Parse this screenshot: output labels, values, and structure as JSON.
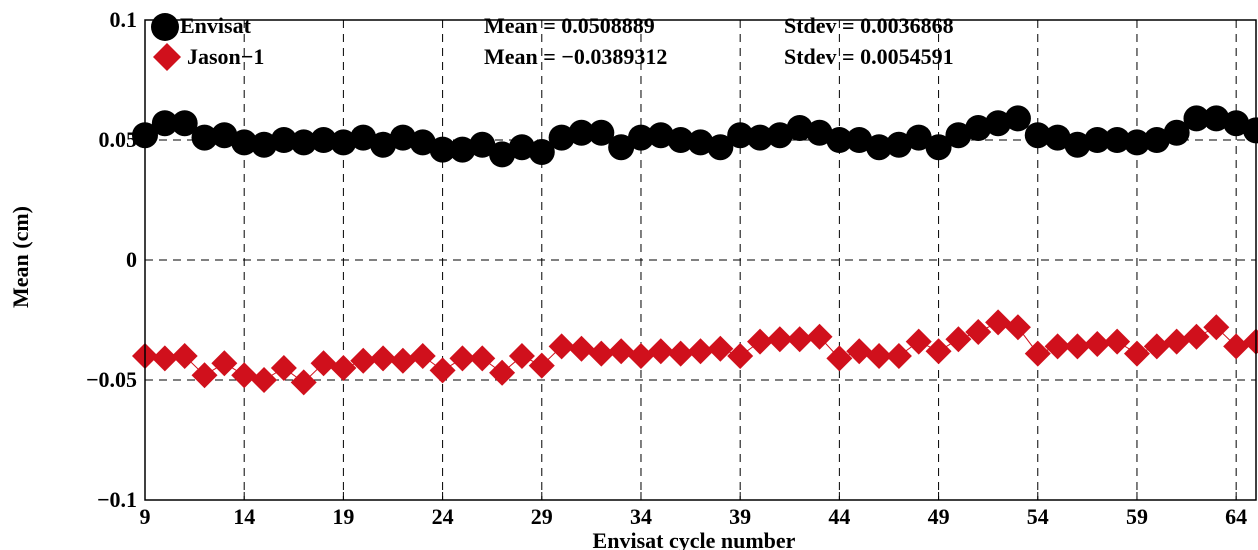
{
  "chart_data": {
    "type": "line",
    "title": "",
    "xlabel": "Envisat cycle number",
    "ylabel": "Mean (cm)",
    "xlim": [
      9,
      65
    ],
    "ylim": [
      -0.1,
      0.1
    ],
    "x_ticks": [
      9,
      14,
      19,
      24,
      29,
      34,
      39,
      44,
      49,
      54,
      59,
      64
    ],
    "y_ticks": [
      {
        "value": -0.1,
        "label": "−0.1"
      },
      {
        "value": -0.05,
        "label": "−0.05"
      },
      {
        "value": 0,
        "label": "0"
      },
      {
        "value": 0.05,
        "label": "0.05"
      },
      {
        "value": 0.1,
        "label": "0.1"
      }
    ],
    "grid": true,
    "legend_position": "top-left",
    "x": [
      9,
      10,
      11,
      12,
      13,
      14,
      15,
      16,
      17,
      18,
      19,
      20,
      21,
      22,
      23,
      24,
      25,
      26,
      27,
      28,
      29,
      30,
      31,
      32,
      33,
      34,
      35,
      36,
      37,
      38,
      39,
      40,
      41,
      42,
      43,
      44,
      45,
      46,
      47,
      48,
      49,
      50,
      51,
      52,
      53,
      54,
      55,
      56,
      57,
      58,
      59,
      60,
      61,
      62,
      63,
      64,
      65
    ],
    "series": [
      {
        "name": "Envisat",
        "color": "#000000",
        "marker": "circle",
        "mean_label": "Mean = 0.0508889",
        "stdev_label": "Stdev = 0.0036868",
        "values": [
          0.052,
          0.057,
          0.057,
          0.051,
          0.052,
          0.049,
          0.048,
          0.05,
          0.049,
          0.05,
          0.049,
          0.051,
          0.048,
          0.051,
          0.049,
          0.046,
          0.046,
          0.048,
          0.044,
          0.047,
          0.045,
          0.051,
          0.053,
          0.053,
          0.047,
          0.051,
          0.052,
          0.05,
          0.049,
          0.047,
          0.052,
          0.051,
          0.052,
          0.055,
          0.053,
          0.05,
          0.05,
          0.047,
          0.048,
          0.051,
          0.047,
          0.052,
          0.055,
          0.057,
          0.059,
          0.052,
          0.051,
          0.048,
          0.05,
          0.05,
          0.049,
          0.05,
          0.053,
          0.059,
          0.059,
          0.057,
          0.054
        ]
      },
      {
        "name": "Jason−1",
        "color": "#d0101c",
        "marker": "diamond",
        "mean_label": "Mean = −0.0389312",
        "stdev_label": "Stdev = 0.0054591",
        "values": [
          -0.04,
          -0.041,
          -0.04,
          -0.048,
          -0.043,
          -0.048,
          -0.05,
          -0.045,
          -0.051,
          -0.043,
          -0.045,
          -0.042,
          -0.041,
          -0.042,
          -0.04,
          -0.046,
          -0.041,
          -0.041,
          -0.047,
          -0.04,
          -0.044,
          -0.036,
          -0.037,
          -0.039,
          -0.038,
          -0.04,
          -0.038,
          -0.039,
          -0.038,
          -0.037,
          -0.04,
          -0.034,
          -0.033,
          -0.033,
          -0.032,
          -0.041,
          -0.038,
          -0.04,
          -0.04,
          -0.034,
          -0.038,
          -0.033,
          -0.03,
          -0.026,
          -0.028,
          -0.039,
          -0.036,
          -0.036,
          -0.035,
          -0.034,
          -0.039,
          -0.036,
          -0.034,
          -0.032,
          -0.028,
          -0.036,
          -0.034
        ]
      }
    ]
  }
}
